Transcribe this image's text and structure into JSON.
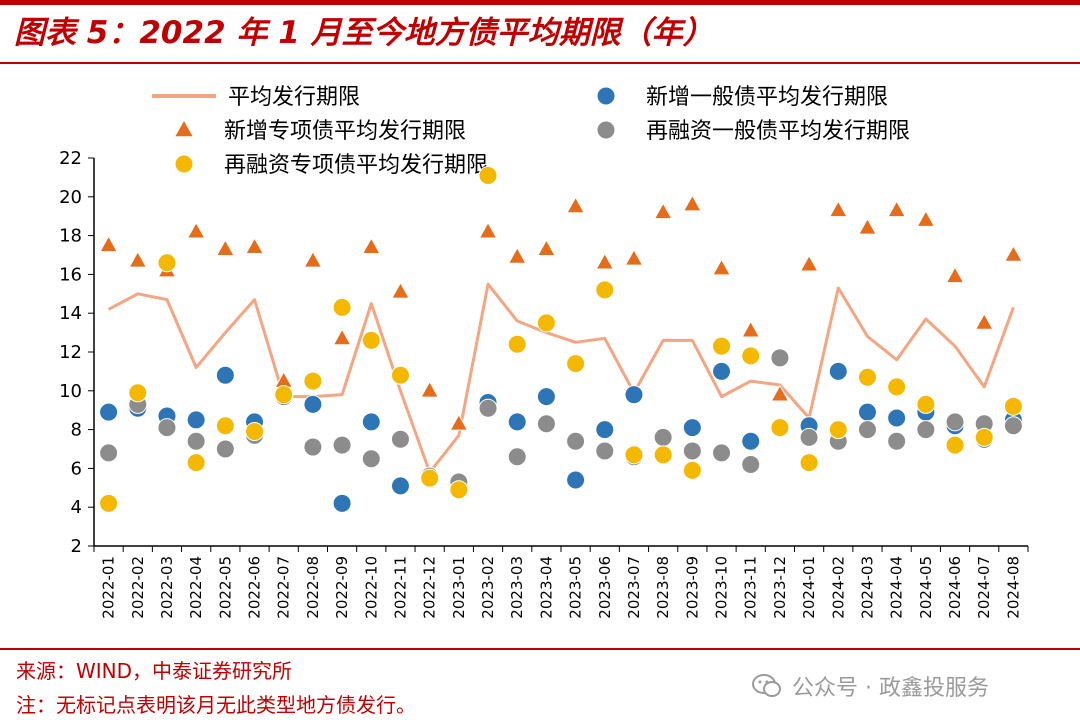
{
  "header": {
    "title": "图表 5：2022 年 1 月至今地方债平均期限（年）"
  },
  "footer": {
    "source": "来源：WIND，中泰证券研究所",
    "note": "注：无标记点表明该月无此类型地方债发行。",
    "watermark": "公众号 · 政鑫投服务"
  },
  "colors": {
    "accent": "#c00000",
    "avg_line": "#f4a582",
    "new_general": "#2e75b6",
    "new_special": "#e46c1a",
    "refi_general": "#8c8c8c",
    "refi_special": "#f5b800"
  },
  "icons": {
    "watermark_icon": "wechat-icon"
  },
  "chart_data": {
    "type": "line",
    "title": "2022 年 1 月至今地方债平均期限（年）",
    "xlabel": "",
    "ylabel": "",
    "ylim": [
      2,
      22
    ],
    "yticks": [
      2,
      4,
      6,
      8,
      10,
      12,
      14,
      16,
      18,
      20,
      22
    ],
    "grid": false,
    "legend_position": "top",
    "categories": [
      "2022-01",
      "2022-02",
      "2022-03",
      "2022-04",
      "2022-05",
      "2022-06",
      "2022-07",
      "2022-08",
      "2022-09",
      "2022-10",
      "2022-11",
      "2022-12",
      "2023-01",
      "2023-02",
      "2023-03",
      "2023-04",
      "2023-05",
      "2023-06",
      "2023-07",
      "2023-08",
      "2023-09",
      "2023-10",
      "2023-11",
      "2023-12",
      "2024-01",
      "2024-02",
      "2024-03",
      "2024-04",
      "2024-05",
      "2024-06",
      "2024-07",
      "2024-08"
    ],
    "series": [
      {
        "name": "平均发行期限",
        "kind": "line",
        "color_key": "avg_line",
        "values": [
          14.2,
          15.0,
          14.7,
          11.2,
          13.0,
          14.7,
          9.7,
          9.7,
          9.8,
          14.5,
          10.0,
          5.8,
          7.7,
          15.5,
          13.6,
          13.0,
          12.5,
          12.7,
          9.9,
          12.6,
          12.6,
          9.7,
          10.5,
          10.3,
          8.6,
          15.3,
          12.8,
          11.6,
          13.7,
          12.3,
          10.2,
          14.3
        ]
      },
      {
        "name": "新增一般债平均发行期限",
        "kind": "scatter",
        "marker": "circle",
        "color_key": "new_general",
        "values": [
          8.9,
          9.1,
          8.7,
          8.5,
          10.8,
          8.4,
          9.8,
          9.3,
          4.2,
          8.4,
          5.1,
          null,
          null,
          9.4,
          8.4,
          9.7,
          5.4,
          8.0,
          9.8,
          null,
          8.1,
          11.0,
          7.4,
          null,
          8.2,
          11.0,
          8.9,
          8.6,
          8.9,
          8.2,
          7.5,
          8.5
        ]
      },
      {
        "name": "新增专项债平均发行期限",
        "kind": "scatter",
        "marker": "triangle",
        "color_key": "new_special",
        "values": [
          17.5,
          16.7,
          16.2,
          18.2,
          17.3,
          17.4,
          10.5,
          16.7,
          12.7,
          17.4,
          15.1,
          10.0,
          8.3,
          18.2,
          16.9,
          17.3,
          19.5,
          16.6,
          16.8,
          19.2,
          19.6,
          16.3,
          13.1,
          9.8,
          16.5,
          19.3,
          18.4,
          19.3,
          18.8,
          15.9,
          13.5,
          17.0
        ]
      },
      {
        "name": "再融资一般债平均发行期限",
        "kind": "scatter",
        "marker": "circle",
        "color_key": "refi_general",
        "values": [
          6.8,
          9.3,
          8.1,
          7.4,
          7.0,
          7.7,
          9.7,
          7.1,
          7.2,
          6.5,
          7.5,
          5.6,
          5.3,
          9.1,
          6.6,
          8.3,
          7.4,
          6.9,
          6.6,
          7.6,
          6.9,
          6.8,
          6.2,
          11.7,
          7.6,
          7.4,
          8.0,
          7.4,
          8.0,
          8.4,
          8.3,
          8.2
        ]
      },
      {
        "name": "再融资专项债平均发行期限",
        "kind": "scatter",
        "marker": "circle",
        "color_key": "refi_special",
        "values": [
          4.2,
          9.9,
          16.6,
          6.3,
          8.2,
          7.9,
          9.8,
          10.5,
          14.3,
          12.6,
          10.8,
          5.5,
          4.9,
          21.1,
          12.4,
          13.5,
          11.4,
          15.2,
          6.7,
          6.7,
          5.9,
          12.3,
          11.8,
          8.1,
          6.3,
          8.0,
          10.7,
          10.2,
          9.3,
          7.2,
          7.6,
          9.2
        ]
      }
    ]
  }
}
